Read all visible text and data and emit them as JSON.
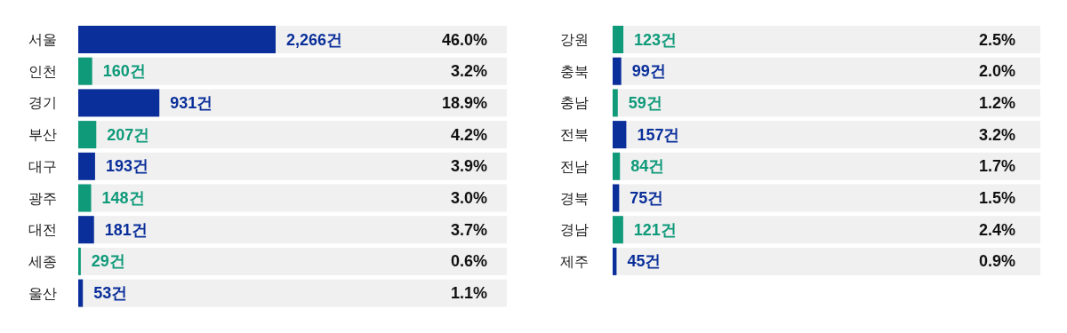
{
  "chart_data": [
    {
      "type": "bar",
      "orientation": "horizontal",
      "categories": [
        "서울",
        "인천",
        "경기",
        "부산",
        "대구",
        "광주",
        "대전",
        "세종",
        "울산"
      ],
      "values": [
        2266,
        160,
        931,
        207,
        193,
        148,
        181,
        29,
        53
      ],
      "colors": [
        "#0a2f9a",
        "#0f9a7a",
        "#0a2f9a",
        "#0f9a7a",
        "#0a2f9a",
        "#0f9a7a",
        "#0a2f9a",
        "#0f9a7a",
        "#0a2f9a"
      ],
      "value_labels": [
        "2,266건",
        "160건",
        "931건",
        "207건",
        "193건",
        "148건",
        "181건",
        "29건",
        "53건"
      ],
      "annotations": [
        "46.0%",
        "3.2%",
        "18.9%",
        "4.2%",
        "3.9%",
        "3.0%",
        "3.7%",
        "0.6%",
        "1.1%"
      ]
    },
    {
      "type": "bar",
      "orientation": "horizontal",
      "categories": [
        "강원",
        "충북",
        "충남",
        "전북",
        "전남",
        "경북",
        "경남",
        "제주"
      ],
      "values": [
        123,
        99,
        59,
        157,
        84,
        75,
        121,
        45
      ],
      "colors": [
        "#0f9a7a",
        "#0a2f9a",
        "#0f9a7a",
        "#0a2f9a",
        "#0f9a7a",
        "#0a2f9a",
        "#0f9a7a",
        "#0a2f9a"
      ],
      "value_labels": [
        "123건",
        "99건",
        "59건",
        "157건",
        "84건",
        "75건",
        "121건",
        "45건"
      ],
      "annotations": [
        "2.5%",
        "2.0%",
        "1.2%",
        "3.2%",
        "1.7%",
        "1.5%",
        "2.4%",
        "0.9%"
      ]
    }
  ]
}
